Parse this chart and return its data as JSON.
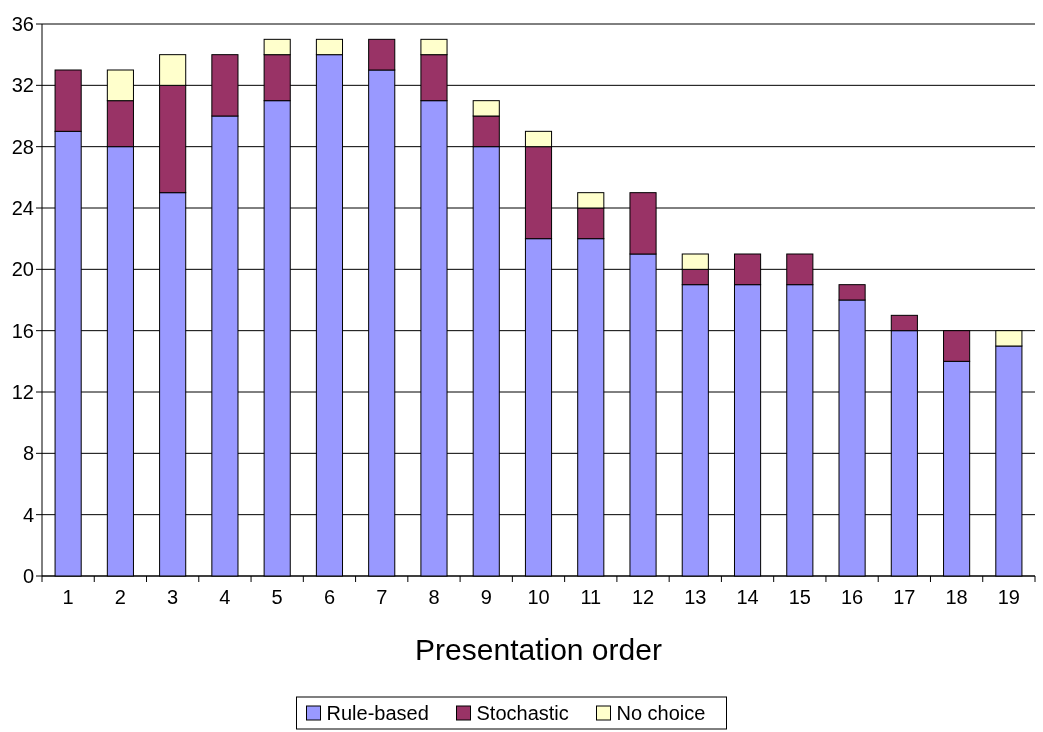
{
  "chart_data": {
    "type": "bar",
    "stacked": true,
    "xlabel": "Presentation order",
    "categories": [
      "1",
      "2",
      "3",
      "4",
      "5",
      "6",
      "7",
      "8",
      "9",
      "10",
      "11",
      "12",
      "13",
      "14",
      "15",
      "16",
      "17",
      "18",
      "19"
    ],
    "series": [
      {
        "name": "Rule-based",
        "color": "#9999ff",
        "values": [
          29,
          28,
          25,
          30,
          31,
          34,
          33,
          31,
          28,
          22,
          22,
          21,
          19,
          19,
          19,
          18,
          16,
          14,
          15
        ]
      },
      {
        "name": "Stochastic",
        "color": "#993366",
        "values": [
          4,
          3,
          7,
          4,
          3,
          0,
          2,
          3,
          2,
          6,
          2,
          4,
          1,
          2,
          2,
          1,
          1,
          2,
          0
        ]
      },
      {
        "name": "No choice",
        "color": "#ffffcc",
        "values": [
          0,
          2,
          2,
          0,
          1,
          1,
          0,
          1,
          1,
          1,
          1,
          0,
          1,
          0,
          0,
          0,
          0,
          0,
          1
        ]
      }
    ],
    "ylim": [
      0,
      36
    ],
    "yticks": [
      0,
      4,
      8,
      12,
      16,
      20,
      24,
      28,
      32,
      36
    ],
    "grid": "y",
    "legend": "bottom"
  }
}
